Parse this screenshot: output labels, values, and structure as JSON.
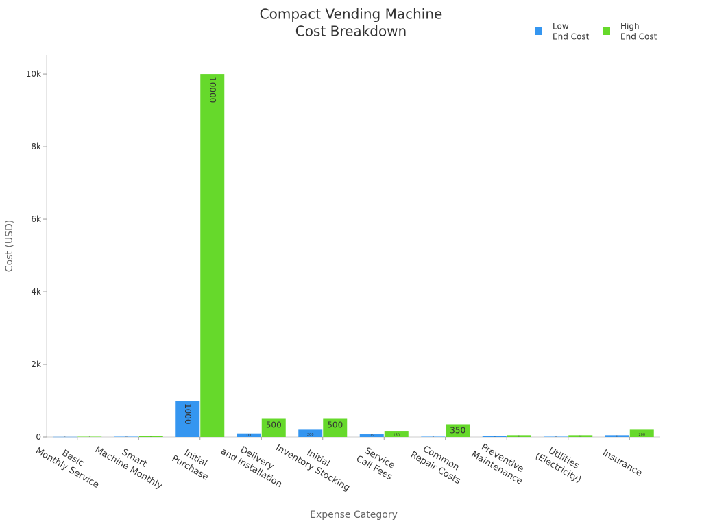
{
  "chart_data": {
    "type": "bar",
    "title": "Compact Vending Machine\nCost Breakdown",
    "x_label": "Expense Category",
    "y_label": "Cost (USD)",
    "categories": [
      "Basic\nMonthly Service",
      "Smart\nMachine Monthly",
      "Initial\nPurchase",
      "Delivery\nand Installation",
      "Initial\nInventory Stocking",
      "Service\nCall Fees",
      "Common\nRepair Costs",
      "Preventive\nMaintenance",
      "Utilities\n(Electricity)",
      "Insurance"
    ],
    "series": [
      {
        "name": "Low\nEnd Cost",
        "color": "#3596f0",
        "values": [
          5,
          10,
          1000,
          100,
          200,
          75,
          10,
          20,
          10,
          50
        ]
      },
      {
        "name": "High\nEnd Cost",
        "color": "#66d92b",
        "values": [
          10,
          30,
          10000,
          500,
          500,
          150,
          350,
          50,
          50,
          200
        ]
      }
    ],
    "ylim": [
      0,
      10530
    ],
    "yticks": [
      0,
      {
        "value": 2000,
        "label": "2k"
      },
      {
        "value": 4000,
        "label": "4k"
      },
      {
        "value": 6000,
        "label": "6k"
      },
      {
        "value": 8000,
        "label": "8k"
      },
      {
        "value": 10000,
        "label": "10k"
      }
    ],
    "grid": false,
    "legend": "top-right"
  }
}
